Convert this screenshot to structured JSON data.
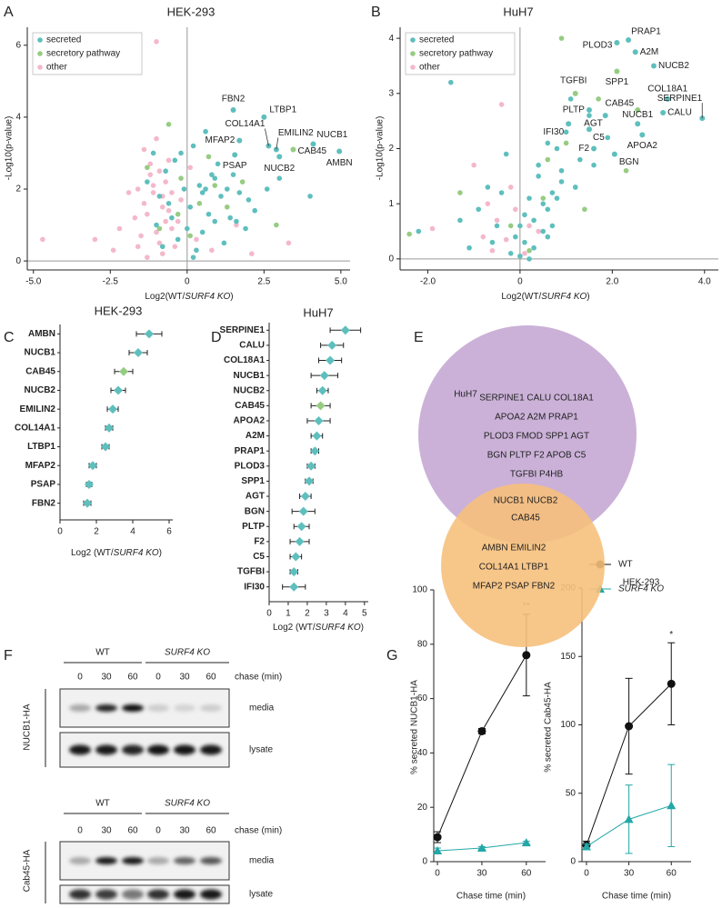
{
  "chart_data": [
    {
      "type": "scatter",
      "panel": "A",
      "title": "HEK-293",
      "xlabel": [
        "Log2(WT/",
        "SURF4 KO",
        ")"
      ],
      "ylabel": "-Log10(p-value)",
      "xlim": [
        -5.2,
        5.3
      ],
      "ylim": [
        -0.25,
        6.5
      ],
      "xticks": [
        {
          "value": -5,
          "label": "-5.0"
        },
        -2.5,
        0,
        2.5,
        {
          "value": 5,
          "label": "5.0"
        }
      ],
      "yticks": [
        0,
        2,
        4,
        6
      ],
      "legend": "top-left",
      "series": [
        {
          "name": "secreted",
          "color": "#5ebfbd",
          "x": [
            -1.3,
            -1.1,
            -0.9,
            -0.7,
            -0.5,
            -0.3,
            -0.1,
            0.1,
            0.2,
            0.4,
            0.5,
            0.6,
            0.8,
            0.9,
            1.0,
            1.1,
            1.3,
            1.5,
            1.7,
            1.9,
            2.2,
            2.6,
            3.0,
            -0.8,
            -0.6,
            0.3,
            0.7,
            1.2,
            -1.0,
            0.0,
            0.6,
            1.4,
            -0.4,
            0.9,
            2.0,
            4.0,
            0.2,
            -0.2,
            1.6,
            0.5
          ],
          "y": [
            2.2,
            3.0,
            1.8,
            2.5,
            1.2,
            0.6,
            2.0,
            1.5,
            3.2,
            2.1,
            0.8,
            3.6,
            2.4,
            1.1,
            2.7,
            1.8,
            2.0,
            2.4,
            1.9,
            0.9,
            1.4,
            2.0,
            2.3,
            0.4,
            1.6,
            0.3,
            1.3,
            0.5,
            1.0,
            0.9,
            2.0,
            1.2,
            2.8,
            2.3,
            1.7,
            1.8,
            0.1,
            3.0,
            1.1,
            1.9
          ]
        },
        {
          "name": "secretory pathway",
          "color": "#96cc82",
          "x": [
            -1.3,
            -0.6,
            -0.2,
            0.1,
            0.4,
            0.9,
            1.3,
            -0.9,
            0.7,
            2.9,
            -0.3,
            1.8
          ],
          "y": [
            2.6,
            3.8,
            2.3,
            0.7,
            1.6,
            2.1,
            1.5,
            0.9,
            2.9,
            1.0,
            1.3,
            2.2
          ]
        },
        {
          "name": "other",
          "color": "#f4b8cb",
          "x": [
            -4.7,
            -2.4,
            -1.6,
            -1.4,
            -1.2,
            -1.0,
            -0.9,
            -0.8,
            -0.7,
            -0.6,
            -0.5,
            -1.5,
            -1.3,
            -1.1,
            -0.9,
            -0.7,
            -1.2,
            -1.0,
            -0.8,
            -0.6,
            -1.4,
            -2.2,
            -1.7,
            -0.4,
            -0.2,
            0.3,
            0.8,
            1.6,
            2.1,
            3.3,
            -1.0,
            -0.8,
            -1.3,
            -1.1,
            -0.5,
            -3.0,
            -1.9,
            0.1,
            -0.3,
            -1.6
          ],
          "y": [
            0.6,
            0.3,
            2.0,
            3.1,
            2.7,
            6.1,
            2.5,
            1.8,
            2.2,
            1.4,
            0.9,
            0.7,
            1.3,
            1.9,
            0.5,
            1.1,
            2.4,
            3.4,
            0.2,
            2.8,
            1.6,
            0.9,
            1.2,
            0.4,
            1.7,
            0.6,
            0.3,
            1.0,
            0.2,
            0.5,
            0.8,
            1.5,
            0.1,
            2.1,
            1.9,
            0.6,
            1.9,
            2.6,
            1.1,
            0.4
          ]
        }
      ],
      "annotations": [
        {
          "text": "FBN2",
          "x": 1.5,
          "y": 4.2,
          "color": "#5ebfbd"
        },
        {
          "text": "LTBP1",
          "x": 2.5,
          "y": 4.0,
          "color": "#5ebfbd"
        },
        {
          "text": "COL14A1",
          "x": 2.65,
          "y": 3.2,
          "color": "#5ebfbd"
        },
        {
          "text": "EMILIN2",
          "x": 2.9,
          "y": 3.1,
          "color": "#5ebfbd"
        },
        {
          "text": "NUCB1",
          "x": 4.1,
          "y": 3.25,
          "color": "#5ebfbd"
        },
        {
          "text": "CAB45",
          "x": 3.45,
          "y": 3.1,
          "color": "#96cc82"
        },
        {
          "text": "MFAP2",
          "x": 1.7,
          "y": 3.35,
          "color": "#5ebfbd"
        },
        {
          "text": "PSAP",
          "x": 1.55,
          "y": 2.95,
          "color": "#5ebfbd"
        },
        {
          "text": "NUCB2",
          "x": 3.0,
          "y": 2.9,
          "color": "#5ebfbd"
        },
        {
          "text": "AMBN",
          "x": 4.95,
          "y": 3.05,
          "color": "#5ebfbd"
        }
      ]
    },
    {
      "type": "scatter",
      "panel": "B",
      "title": "HuH7",
      "xlabel": [
        "Log2(WT/",
        "SURF4 KO",
        ")"
      ],
      "ylabel": "-Log10(p-value)",
      "xlim": [
        -2.6,
        4.3
      ],
      "ylim": [
        -0.2,
        4.2
      ],
      "xticks": [
        {
          "value": -2,
          "label": "-2.0"
        },
        0,
        {
          "value": 2,
          "label": "2.0"
        },
        {
          "value": 4,
          "label": "4.0"
        }
      ],
      "yticks": [
        0,
        1,
        2,
        3,
        4
      ],
      "legend": "top-left",
      "series": [
        {
          "name": "secreted",
          "color": "#5ebfbd",
          "x": [
            -2.2,
            -1.5,
            -1.1,
            -0.9,
            -0.7,
            -0.5,
            -0.3,
            -0.2,
            0.0,
            0.1,
            0.2,
            0.3,
            0.4,
            0.5,
            0.6,
            0.7,
            0.8,
            0.9,
            1.0,
            1.1,
            1.3,
            1.6,
            1.9,
            -0.1,
            0.3,
            0.5,
            0.7,
            0.9,
            0.6,
            -0.6,
            0.1,
            0.4,
            1.2,
            -1.3,
            0.8,
            0.2,
            0.6,
            -0.4,
            1.5,
            0.0
          ],
          "y": [
            0.5,
            3.2,
            0.2,
            0.9,
            1.3,
            0.6,
            1.9,
            0.1,
            0.05,
            0.3,
            1.1,
            0.7,
            1.5,
            0.5,
            0.9,
            1.2,
            2.0,
            1.6,
            2.3,
            2.9,
            1.8,
            1.7,
            2.2,
            0.4,
            0.2,
            1.0,
            0.6,
            1.4,
            2.1,
            0.3,
            0.8,
            1.7,
            1.3,
            0.7,
            1.1,
            0.0,
            0.4,
            1.2,
            2.6,
            0.6
          ]
        },
        {
          "name": "secretory pathway",
          "color": "#96cc82",
          "x": [
            -2.4,
            -1.3,
            -0.2,
            0.2,
            0.5,
            0.9,
            1.0,
            1.2,
            1.7,
            2.3,
            0.6,
            1.4
          ],
          "y": [
            0.45,
            1.2,
            0.6,
            0.15,
            1.1,
            4.0,
            2.1,
            1.3,
            2.9,
            1.6,
            1.8,
            0.9
          ]
        },
        {
          "name": "other",
          "color": "#f4b8cb",
          "x": [
            -1.9,
            -1.0,
            -0.7,
            -0.5,
            -0.4,
            -0.3,
            -0.1,
            0.0,
            0.1,
            0.3,
            -0.8,
            -0.2,
            0.4,
            -0.6,
            0.2
          ],
          "y": [
            0.55,
            1.7,
            1.0,
            0.7,
            2.8,
            0.35,
            0.9,
            0.05,
            0.1,
            0.2,
            0.4,
            1.3,
            0.5,
            0.15,
            0.6
          ]
        }
      ],
      "annotations": [
        {
          "text": "PRAP1",
          "x": 2.35,
          "y": 3.97,
          "color": "#5ebfbd"
        },
        {
          "text": "PLOD3",
          "x": 2.1,
          "y": 3.92,
          "color": "#5ebfbd"
        },
        {
          "text": "A2M",
          "x": 2.5,
          "y": 3.75,
          "color": "#5ebfbd"
        },
        {
          "text": "NUCB2",
          "x": 2.9,
          "y": 3.5,
          "color": "#5ebfbd"
        },
        {
          "text": "TGFBI",
          "x": 1.2,
          "y": 3.0,
          "color": "#96cc82"
        },
        {
          "text": "SPP1",
          "x": 2.1,
          "y": 3.4,
          "color": "#96cc82"
        },
        {
          "text": "COL18A1",
          "x": 3.2,
          "y": 2.9,
          "color": "#5ebfbd"
        },
        {
          "text": "PLTP",
          "x": 1.5,
          "y": 2.7,
          "color": "#5ebfbd"
        },
        {
          "text": "CAB45",
          "x": 2.55,
          "y": 2.7,
          "color": "#96cc82"
        },
        {
          "text": "AGT",
          "x": 1.85,
          "y": 2.6,
          "color": "#5ebfbd"
        },
        {
          "text": "CALU",
          "x": 3.1,
          "y": 2.65,
          "color": "#5ebfbd"
        },
        {
          "text": "IFI30",
          "x": 1.05,
          "y": 2.45,
          "color": "#5ebfbd"
        },
        {
          "text": "C5",
          "x": 1.5,
          "y": 2.35,
          "color": "#5ebfbd"
        },
        {
          "text": "NUCB1",
          "x": 2.55,
          "y": 2.45,
          "color": "#5ebfbd"
        },
        {
          "text": "SERPINE1",
          "x": 3.95,
          "y": 2.55,
          "color": "#5ebfbd"
        },
        {
          "text": "APOA2",
          "x": 2.65,
          "y": 2.25,
          "color": "#5ebfbd"
        },
        {
          "text": "F2",
          "x": 1.6,
          "y": 2.0,
          "color": "#5ebfbd"
        },
        {
          "text": "BGN",
          "x": 2.05,
          "y": 1.9,
          "color": "#5ebfbd"
        }
      ]
    },
    {
      "type": "dot",
      "panel": "C",
      "title": "HEK-293",
      "xlabel": [
        "Log2 (WT/",
        "SURF4 KO",
        ")"
      ],
      "categories": [
        "AMBN",
        "NUCB1",
        "CAB45",
        "NUCB2",
        "EMILIN2",
        "COL14A1",
        "LTBP1",
        "MFAP2",
        "PSAP",
        "FBN2"
      ],
      "values": [
        4.9,
        4.3,
        3.5,
        3.2,
        2.9,
        2.7,
        2.5,
        1.8,
        1.6,
        1.5
      ],
      "errors": [
        0.7,
        0.5,
        0.5,
        0.4,
        0.3,
        0.2,
        0.2,
        0.2,
        0.15,
        0.2
      ],
      "label_colors": [
        "#111",
        "#2e9e3e",
        "#2e9e3e",
        "#2e9e3e",
        "#111",
        "#111",
        "#111",
        "#111",
        "#2e9e3e",
        "#111"
      ],
      "marker_colors": [
        "#5ebfbd",
        "#5ebfbd",
        "#96cc82",
        "#5ebfbd",
        "#5ebfbd",
        "#5ebfbd",
        "#5ebfbd",
        "#5ebfbd",
        "#5ebfbd",
        "#5ebfbd"
      ],
      "xlim": [
        0,
        6.2
      ],
      "xticks": [
        0,
        2,
        4,
        6
      ]
    },
    {
      "type": "dot",
      "panel": "D",
      "title": "HuH7",
      "xlabel": [
        "Log2 (WT/",
        "SURF4 KO",
        ")"
      ],
      "categories": [
        "SERPINE1",
        "CALU",
        "COL18A1",
        "NUCB1",
        "NUCB2",
        "CAB45",
        "APOA2",
        "A2M",
        "PRAP1",
        "PLOD3",
        "SPP1",
        "AGT",
        "BGN",
        "PLTP",
        "F2",
        "C5",
        "TGFBI",
        "IFI30"
      ],
      "values": [
        4.0,
        3.3,
        3.2,
        2.9,
        2.8,
        2.7,
        2.6,
        2.5,
        2.4,
        2.2,
        2.1,
        1.9,
        1.8,
        1.7,
        1.6,
        1.4,
        1.3,
        1.3
      ],
      "errors": [
        0.8,
        0.6,
        0.6,
        0.7,
        0.3,
        0.5,
        0.6,
        0.3,
        0.2,
        0.2,
        0.2,
        0.3,
        0.6,
        0.4,
        0.5,
        0.3,
        0.2,
        0.6
      ],
      "label_colors": [
        "#111",
        "#111",
        "#111",
        "#2e9e3e",
        "#2e9e3e",
        "#2e9e3e",
        "#111",
        "#111",
        "#2e9e3e",
        "#111",
        "#2e9e3e",
        "#111",
        "#111",
        "#111",
        "#111",
        "#111",
        "#2e9e3e",
        "#111"
      ],
      "marker_colors": [
        "#5ebfbd",
        "#5ebfbd",
        "#5ebfbd",
        "#5ebfbd",
        "#5ebfbd",
        "#96cc82",
        "#5ebfbd",
        "#5ebfbd",
        "#5ebfbd",
        "#5ebfbd",
        "#5ebfbd",
        "#5ebfbd",
        "#5ebfbd",
        "#5ebfbd",
        "#5ebfbd",
        "#5ebfbd",
        "#5ebfbd",
        "#5ebfbd"
      ],
      "xlim": [
        0,
        5.2
      ],
      "xticks": [
        0,
        1,
        2,
        3,
        4,
        5
      ]
    },
    {
      "type": "line",
      "panel": "G",
      "xlabel": "Chase time (min)",
      "ylabel": "% secreted NUCB1-HA",
      "x": [
        0,
        30,
        60
      ],
      "xlim": [
        -2.5,
        73
      ],
      "xticks": [
        0,
        30,
        60
      ],
      "ylim": [
        0,
        100
      ],
      "yticks": [
        0,
        20,
        40,
        60,
        80,
        100
      ],
      "series": [
        {
          "color": "#111111",
          "marker": "circle",
          "values": [
            9,
            48,
            76
          ],
          "errors": [
            2,
            1,
            15
          ]
        },
        {
          "color": "#23a7a7",
          "marker": "triangle",
          "values": [
            4,
            5,
            7
          ],
          "errors": [
            1,
            0.5,
            0.5
          ]
        }
      ],
      "annotations": [
        {
          "text": "**",
          "x": 60
        }
      ]
    },
    {
      "type": "line",
      "xlabel": "Chase time (min)",
      "ylabel": "% secreted Cab45-HA",
      "x": [
        0,
        30,
        60
      ],
      "xlim": [
        -3.2,
        74
      ],
      "xticks": [
        0,
        30,
        60
      ],
      "ylim": [
        0,
        200
      ],
      "yticks": [
        0,
        50,
        100,
        150,
        200
      ],
      "legend": "top",
      "series": [
        {
          "name": "WT",
          "color": "#111111",
          "marker": "circle",
          "values": [
            12,
            99,
            130
          ],
          "errors": [
            3,
            35,
            30
          ]
        },
        {
          "name": "SURF4 KO",
          "color": "#23a7a7",
          "marker": "triangle",
          "italic": true,
          "values": [
            11,
            31,
            41
          ],
          "errors": [
            2,
            25,
            30
          ]
        }
      ],
      "annotations": [
        {
          "text": "*",
          "x": 60
        }
      ]
    }
  ],
  "venn": {
    "panel": "E",
    "sets": [
      {
        "name": "HuH7",
        "color": "#cbb1d8",
        "only": [
          "SERPINE1  CALU  COL18A1",
          "APOA2  A2M  PRAP1",
          "PLOD3  FMOD  SPP1  AGT",
          "BGN  PLTP  F2  APOB  C5",
          "TGFBI  P4HB"
        ]
      },
      {
        "name": "HEK-293",
        "color": "#f6c07c",
        "only": [
          "AMBN  EMILIN2",
          "COL14A1  LTBP1",
          "MFAP2  PSAP  FBN2"
        ]
      }
    ],
    "both": [
      "NUCB1 NUCB2",
      "CAB45"
    ]
  },
  "blots": {
    "panel": "F",
    "conditions": [
      "WT",
      "SURF4 KO"
    ],
    "times": [
      "0",
      "30",
      "60"
    ],
    "chase_label": "chase (min)",
    "rows": [
      "media",
      "lysate"
    ],
    "proteins": [
      "NUCB1-HA",
      "Cab45-HA"
    ]
  }
}
